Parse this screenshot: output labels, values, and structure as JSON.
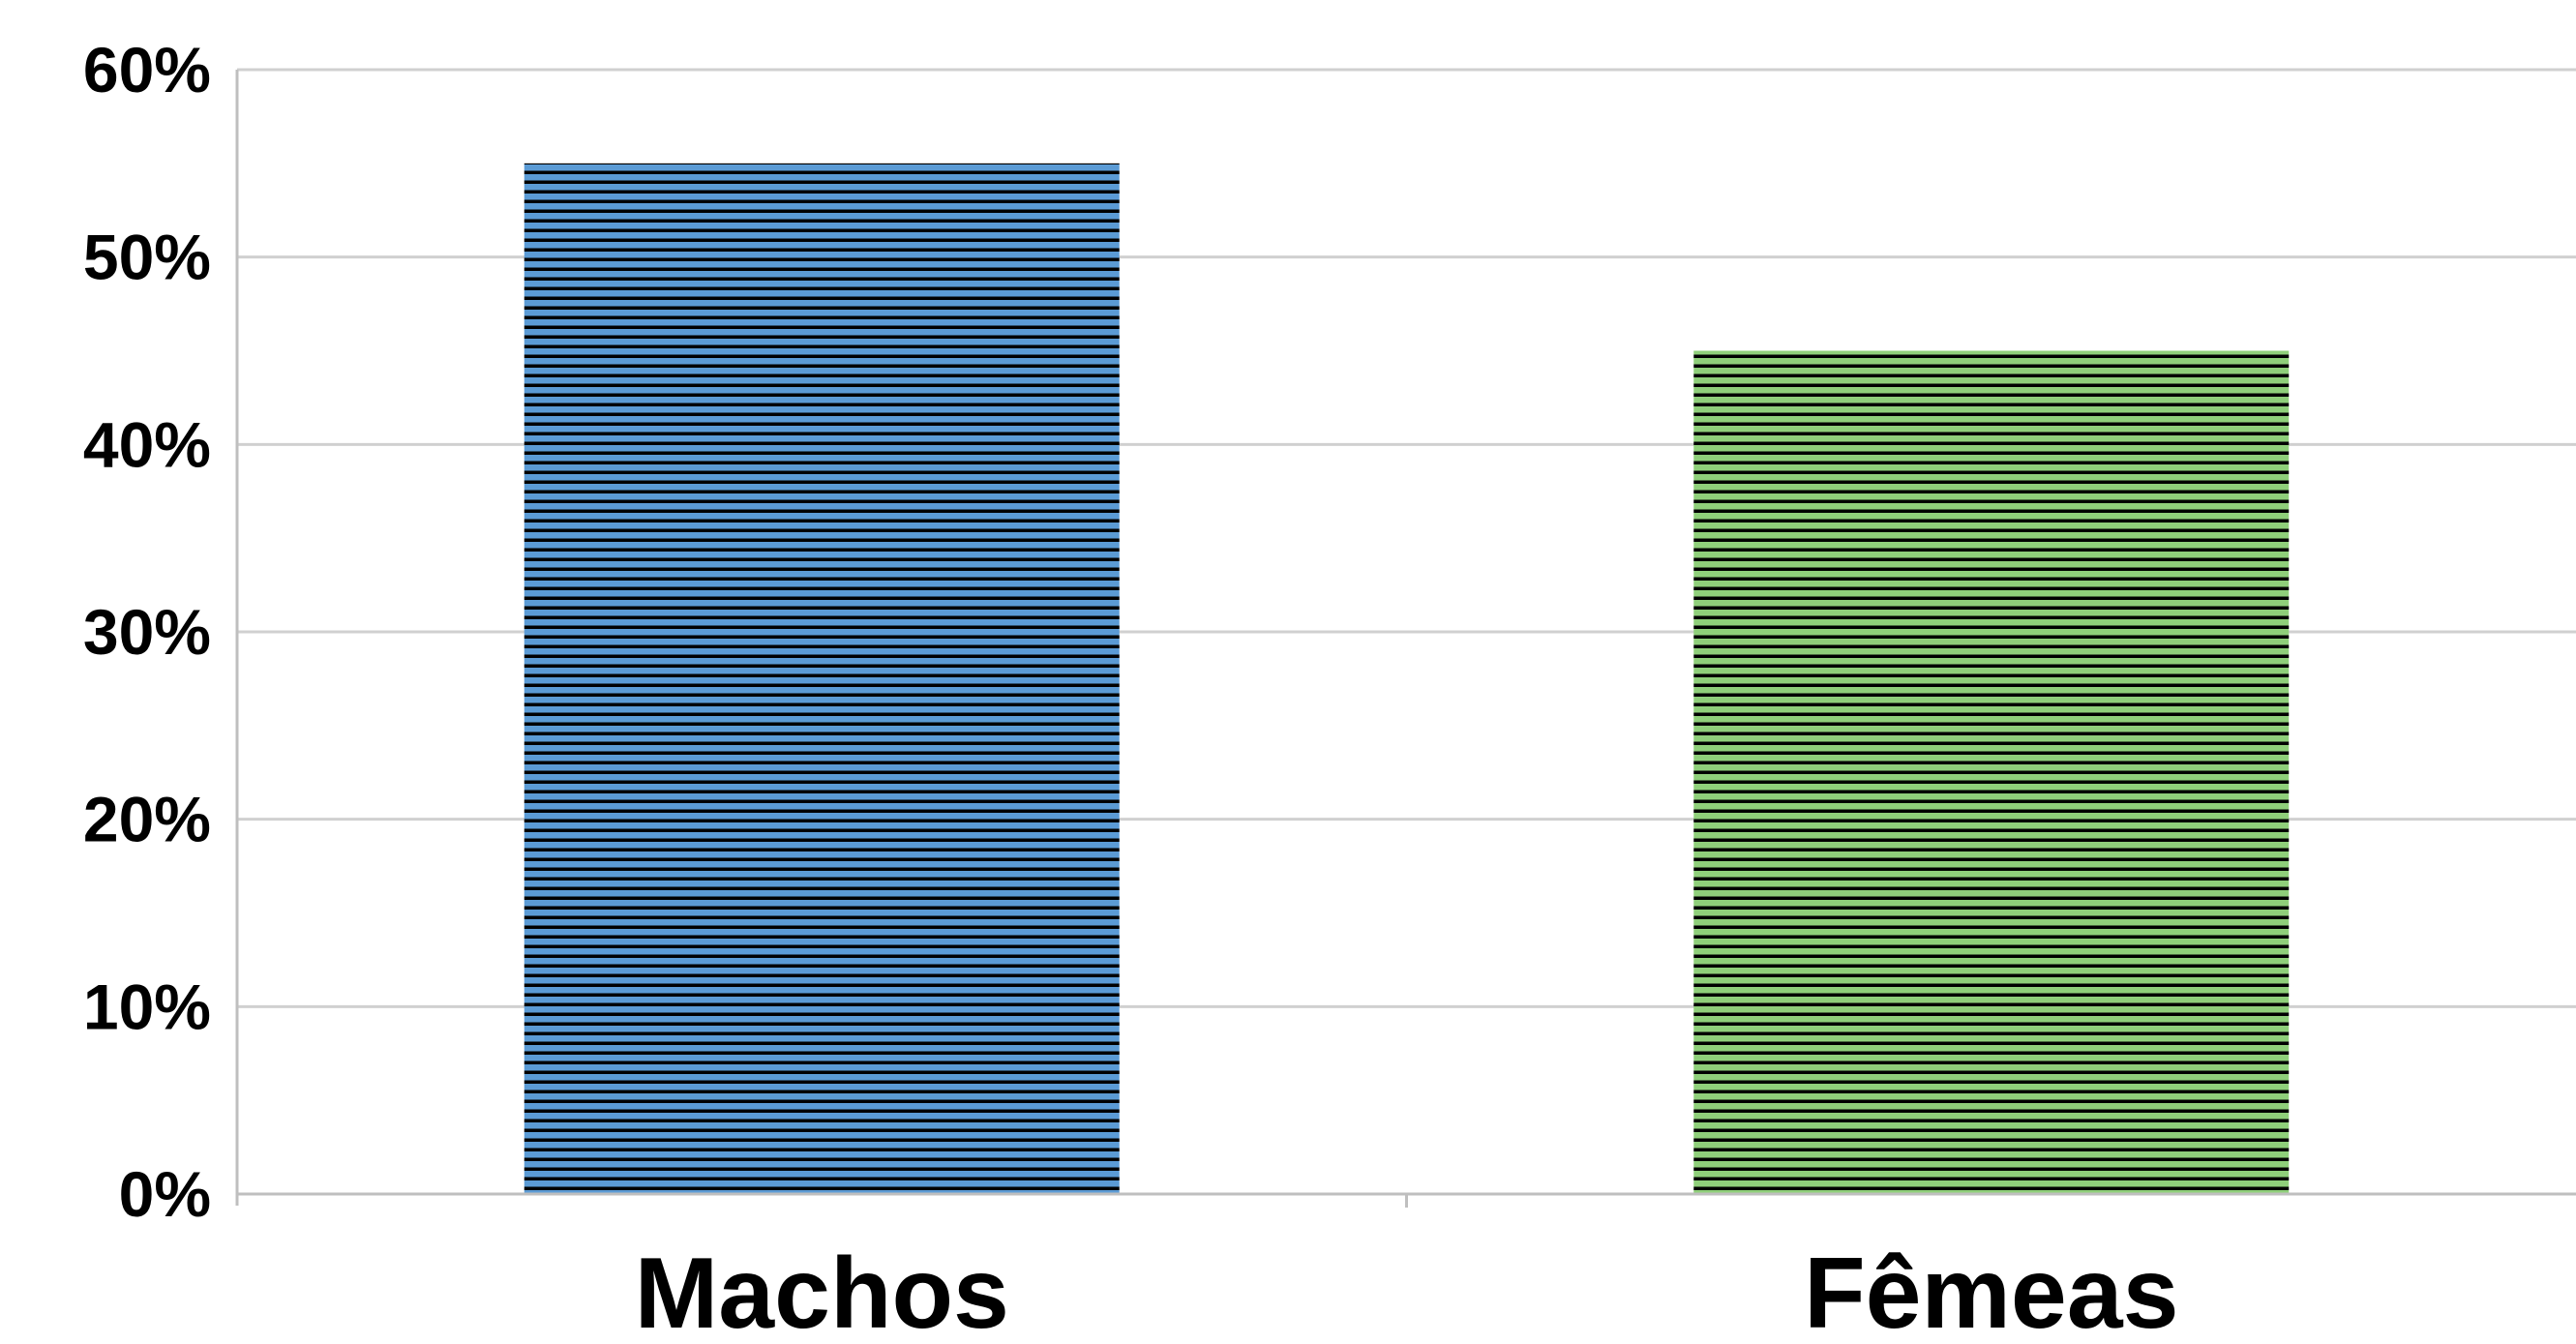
{
  "chart_data": {
    "type": "bar",
    "categories": [
      "Machos",
      "Fêmeas"
    ],
    "values": [
      55,
      45
    ],
    "value_unit": "%",
    "title": "",
    "xlabel": "",
    "ylabel": "",
    "ylim": [
      0,
      60
    ],
    "yticks": [
      0,
      10,
      20,
      30,
      40,
      50,
      60
    ],
    "ytick_labels": [
      "0%",
      "10%",
      "20%",
      "30%",
      "40%",
      "50%",
      "60%"
    ],
    "grid": true,
    "legend": "none",
    "bar_colors": [
      "#5b9bd5",
      "#8fcf7a"
    ],
    "stripe_color": "#000000",
    "gridline_color": "#d0d0d0",
    "axis_color": "#bfbfbf"
  }
}
